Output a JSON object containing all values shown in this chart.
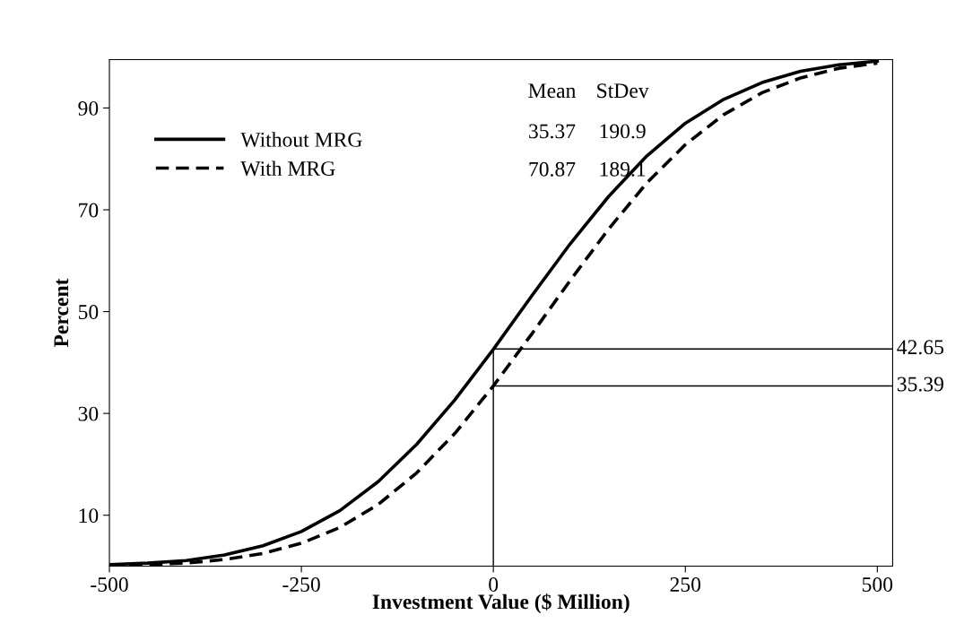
{
  "chart_data": {
    "type": "line",
    "xlabel": "Investment Value ($ Million)",
    "ylabel": "Percent",
    "x": [
      -500,
      -450,
      -400,
      -350,
      -300,
      -250,
      -200,
      -150,
      -100,
      -50,
      0,
      50,
      100,
      150,
      200,
      250,
      300,
      350,
      400,
      450,
      500
    ],
    "series": [
      {
        "name": "Without MRG",
        "color": "#000000",
        "line_style": "solid",
        "values": [
          0.3,
          0.6,
          1.1,
          2.2,
          4.0,
          6.8,
          10.9,
          16.6,
          23.9,
          32.7,
          42.6,
          53.1,
          63.3,
          72.6,
          80.6,
          87.0,
          91.7,
          95.0,
          97.2,
          98.5,
          99.2
        ]
      },
      {
        "name": "With MRG",
        "color": "#000000",
        "line_style": "dashed",
        "values": [
          0.1,
          0.3,
          0.6,
          1.3,
          2.5,
          4.5,
          7.6,
          12.1,
          18.3,
          26.1,
          35.4,
          45.6,
          56.1,
          66.2,
          75.3,
          82.8,
          88.7,
          93.0,
          95.9,
          97.8,
          98.8
        ]
      }
    ],
    "xlim": [
      -500,
      520
    ],
    "xticks": [
      -500,
      -250,
      0,
      250,
      500
    ],
    "ylim": [
      0,
      99.5
    ],
    "yticks": [
      10,
      30,
      50,
      70,
      90
    ],
    "ref_lines": [
      {
        "axis": "x",
        "value": 0,
        "color": "#000000"
      },
      {
        "axis": "y",
        "value": 42.65,
        "label": "42.65",
        "color": "#000000"
      },
      {
        "axis": "y",
        "value": 35.39,
        "label": "35.39",
        "color": "#000000"
      }
    ],
    "annotations": [
      "Mean",
      "StDev",
      "35.37",
      "190.9",
      "70.87",
      "189.1"
    ],
    "legend": "top left",
    "grid": false,
    "marker": "none"
  }
}
